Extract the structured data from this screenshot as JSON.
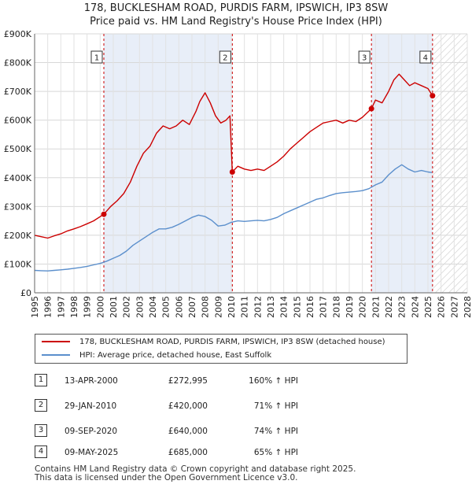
{
  "header": {
    "title": "178, BUCKLESHAM ROAD, PURDIS FARM, IPSWICH, IP3 8SW",
    "subtitle": "Price paid vs. HM Land Registry's House Price Index (HPI)"
  },
  "chart_data": {
    "type": "line",
    "title": "178, BUCKLESHAM ROAD, PURDIS FARM, IPSWICH, IP3 8SW",
    "subtitle": "Price paid vs. HM Land Registry's House Price Index (HPI)",
    "xlabel": "",
    "ylabel": "",
    "xlim": [
      1995,
      2028
    ],
    "ylim": [
      0,
      900000
    ],
    "yticks": [
      0,
      100000,
      200000,
      300000,
      400000,
      500000,
      600000,
      700000,
      800000,
      900000
    ],
    "ytick_labels": [
      "£0",
      "£100K",
      "£200K",
      "£300K",
      "£400K",
      "£500K",
      "£600K",
      "£700K",
      "£800K",
      "£900K"
    ],
    "xticks": [
      1995,
      1996,
      1997,
      1998,
      1999,
      2000,
      2001,
      2002,
      2003,
      2004,
      2005,
      2006,
      2007,
      2008,
      2009,
      2010,
      2011,
      2012,
      2013,
      2014,
      2015,
      2016,
      2017,
      2018,
      2019,
      2020,
      2021,
      2022,
      2023,
      2024,
      2025,
      2026,
      2027,
      2028
    ],
    "grid": true,
    "colors": {
      "property": "#cc0000",
      "hpi": "#5b8fcc",
      "shade": "#e8eef8",
      "marker": "#cc0000"
    },
    "series": [
      {
        "name": "178, BUCKLESHAM ROAD, PURDIS FARM, IPSWICH, IP3 8SW (detached house)",
        "x": [
          1995.0,
          1995.5,
          1996.0,
          1996.5,
          1997.0,
          1997.5,
          1998.0,
          1998.5,
          1999.0,
          1999.5,
          2000.28,
          2000.8,
          2001.3,
          2001.8,
          2002.3,
          2002.8,
          2003.3,
          2003.8,
          2004.3,
          2004.8,
          2005.3,
          2005.8,
          2006.3,
          2006.8,
          2007.3,
          2007.6,
          2008.0,
          2008.4,
          2008.8,
          2009.2,
          2009.6,
          2009.9,
          2010.08,
          2010.5,
          2011.0,
          2011.5,
          2012.0,
          2012.5,
          2013.0,
          2013.5,
          2014.0,
          2014.5,
          2015.0,
          2015.5,
          2016.0,
          2016.5,
          2017.0,
          2017.5,
          2018.0,
          2018.5,
          2019.0,
          2019.5,
          2020.0,
          2020.69,
          2021.0,
          2021.5,
          2022.0,
          2022.4,
          2022.8,
          2023.2,
          2023.6,
          2024.0,
          2024.5,
          2025.0,
          2025.35
        ],
        "values": [
          200000,
          195000,
          190000,
          198000,
          205000,
          215000,
          222000,
          230000,
          240000,
          250000,
          272995,
          300000,
          320000,
          345000,
          385000,
          440000,
          485000,
          510000,
          555000,
          580000,
          570000,
          580000,
          600000,
          585000,
          630000,
          665000,
          695000,
          660000,
          615000,
          590000,
          600000,
          615000,
          420000,
          440000,
          430000,
          425000,
          430000,
          425000,
          440000,
          455000,
          475000,
          500000,
          520000,
          540000,
          560000,
          575000,
          590000,
          595000,
          600000,
          590000,
          600000,
          595000,
          610000,
          640000,
          670000,
          660000,
          700000,
          740000,
          760000,
          740000,
          720000,
          730000,
          720000,
          710000,
          685000
        ]
      },
      {
        "name": "HPI: Average price, detached house, East Suffolk",
        "x": [
          1995.0,
          1995.5,
          1996.0,
          1996.5,
          1997.0,
          1997.5,
          1998.0,
          1998.5,
          1999.0,
          1999.5,
          2000.0,
          2000.5,
          2001.0,
          2001.5,
          2002.0,
          2002.5,
          2003.0,
          2003.5,
          2004.0,
          2004.5,
          2005.0,
          2005.5,
          2006.0,
          2006.5,
          2007.0,
          2007.5,
          2008.0,
          2008.5,
          2009.0,
          2009.5,
          2010.0,
          2010.5,
          2011.0,
          2011.5,
          2012.0,
          2012.5,
          2013.0,
          2013.5,
          2014.0,
          2014.5,
          2015.0,
          2015.5,
          2016.0,
          2016.5,
          2017.0,
          2017.5,
          2018.0,
          2018.5,
          2019.0,
          2019.5,
          2020.0,
          2020.5,
          2021.0,
          2021.5,
          2022.0,
          2022.5,
          2023.0,
          2023.5,
          2024.0,
          2024.5,
          2025.0,
          2025.3
        ],
        "values": [
          78000,
          77000,
          76000,
          78000,
          80000,
          82000,
          85000,
          88000,
          92000,
          97000,
          102000,
          110000,
          120000,
          130000,
          145000,
          165000,
          180000,
          195000,
          210000,
          222000,
          222000,
          228000,
          238000,
          250000,
          262000,
          270000,
          265000,
          252000,
          232000,
          235000,
          245000,
          250000,
          248000,
          250000,
          252000,
          250000,
          255000,
          262000,
          275000,
          285000,
          295000,
          305000,
          315000,
          325000,
          330000,
          338000,
          345000,
          348000,
          350000,
          352000,
          355000,
          362000,
          375000,
          385000,
          410000,
          430000,
          445000,
          430000,
          420000,
          425000,
          420000,
          418000
        ]
      }
    ],
    "annotations": [
      {
        "label": "1",
        "x": 2000.28,
        "value": 272995
      },
      {
        "label": "2",
        "x": 2010.08,
        "value": 420000
      },
      {
        "label": "3",
        "x": 2020.69,
        "value": 640000
      },
      {
        "label": "4",
        "x": 2025.35,
        "value": 685000
      }
    ],
    "shaded_periods": [
      [
        2000.28,
        2010.08
      ],
      [
        2020.69,
        2025.35
      ]
    ],
    "hatched_period": [
      2025.35,
      2028
    ]
  },
  "legend": {
    "property_label": "178, BUCKLESHAM ROAD, PURDIS FARM, IPSWICH, IP3 8SW (detached house)",
    "hpi_label": "HPI: Average price, detached house, East Suffolk"
  },
  "transactions": [
    {
      "num": "1",
      "date": "13-APR-2000",
      "price": "£272,995",
      "hpi": "160% ↑ HPI"
    },
    {
      "num": "2",
      "date": "29-JAN-2010",
      "price": "£420,000",
      "hpi": "71% ↑ HPI"
    },
    {
      "num": "3",
      "date": "09-SEP-2020",
      "price": "£640,000",
      "hpi": "74% ↑ HPI"
    },
    {
      "num": "4",
      "date": "09-MAY-2025",
      "price": "£685,000",
      "hpi": "65% ↑ HPI"
    }
  ],
  "footer": {
    "line1": "Contains HM Land Registry data © Crown copyright and database right 2025.",
    "line2": "This data is licensed under the Open Government Licence v3.0."
  }
}
